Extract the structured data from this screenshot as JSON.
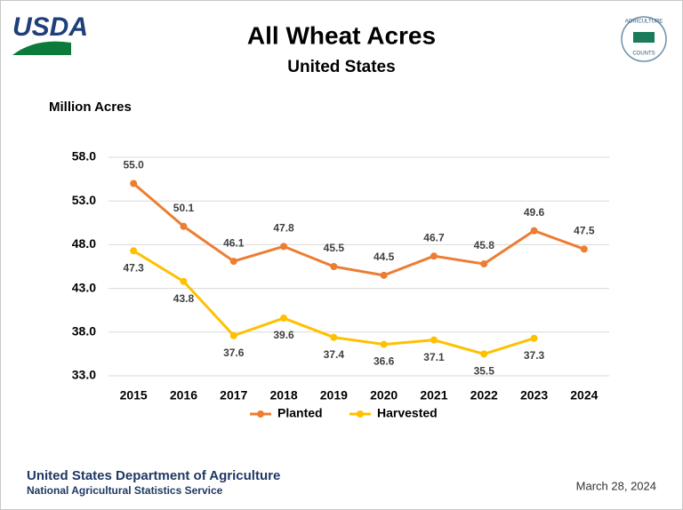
{
  "header": {
    "logo": "USDA",
    "seal_top": "AGRICULTURE",
    "seal_bottom": "COUNTS"
  },
  "chart_data": {
    "type": "line",
    "title": "All Wheat Acres",
    "subtitle": "United States",
    "y_label": "Million Acres",
    "categories": [
      "2015",
      "2016",
      "2017",
      "2018",
      "2019",
      "2020",
      "2021",
      "2022",
      "2023",
      "2024"
    ],
    "series": [
      {
        "name": "Planted",
        "color": "#ed7d31",
        "values": [
          55.0,
          50.1,
          46.1,
          47.8,
          45.5,
          44.5,
          46.7,
          45.8,
          49.6,
          47.5
        ],
        "value_labels": [
          "55.0",
          "50.1",
          "46.1",
          "47.8",
          "45.5",
          "44.5",
          "46.7",
          "45.8",
          "49.6",
          "47.5"
        ]
      },
      {
        "name": "Harvested",
        "color": "#ffc000",
        "values": [
          47.3,
          43.8,
          37.6,
          39.6,
          37.4,
          36.6,
          37.1,
          35.5,
          37.3,
          null
        ],
        "value_labels": [
          "47.3",
          "43.8",
          "37.6",
          "39.6",
          "37.4",
          "36.6",
          "37.1",
          "35.5",
          "37.3",
          null
        ]
      }
    ],
    "ylim": [
      33,
      58
    ],
    "yticks": [
      {
        "value": 33,
        "label": "33.0"
      },
      {
        "value": 38,
        "label": "38.0"
      },
      {
        "value": 43,
        "label": "43.0"
      },
      {
        "value": 48,
        "label": "48.0"
      },
      {
        "value": 53,
        "label": "53.0"
      },
      {
        "value": 58,
        "label": "58.0"
      }
    ],
    "grid": true,
    "legend": "bottom"
  },
  "footer": {
    "department": "United States Department of Agriculture",
    "service": "National Agricultural Statistics Service",
    "date": "March 28, 2024"
  }
}
